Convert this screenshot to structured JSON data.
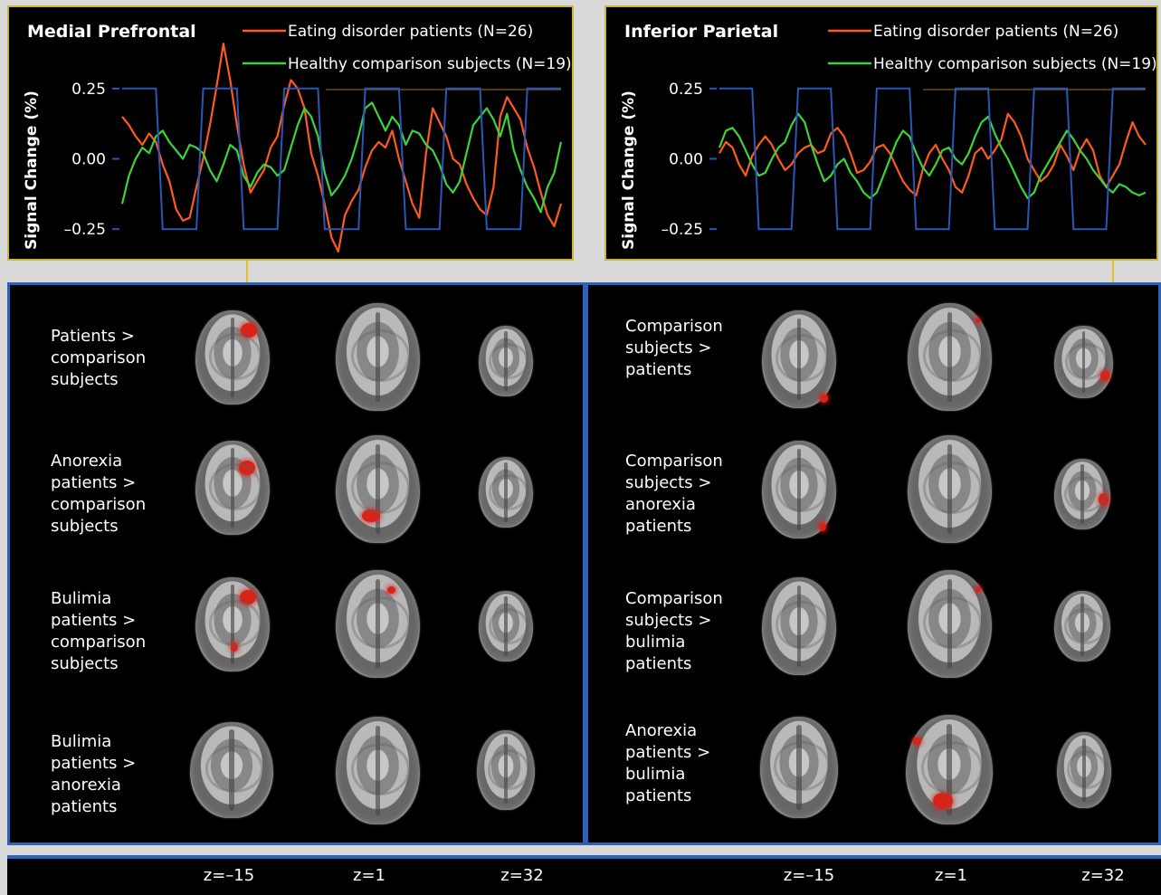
{
  "chart_data": [
    {
      "type": "line",
      "title": "Medial Prefrontal",
      "ylabel": "Signal Change (%)",
      "ylim": [
        -0.33,
        0.33
      ],
      "yticks": [
        "0.25",
        "0.00",
        "–0.25"
      ],
      "series": [
        {
          "name": "Eating disorder patients (N=26)",
          "color": "#ff5a1f",
          "values": [
            0.15,
            0.12,
            0.08,
            0.05,
            0.09,
            0.06,
            -0.02,
            -0.08,
            -0.18,
            -0.22,
            -0.21,
            -0.1,
            0.0,
            0.12,
            0.26,
            0.41,
            0.28,
            0.12,
            -0.02,
            -0.12,
            -0.08,
            -0.04,
            0.04,
            0.08,
            0.19,
            0.28,
            0.25,
            0.18,
            0.02,
            -0.06,
            -0.16,
            -0.28,
            -0.33,
            -0.2,
            -0.15,
            -0.11,
            -0.03,
            0.03,
            0.06,
            0.04,
            0.1,
            0.0,
            -0.08,
            -0.16,
            -0.21,
            0.02,
            0.18,
            0.13,
            0.08,
            0.0,
            -0.02,
            -0.09,
            -0.14,
            -0.18,
            -0.2,
            -0.1,
            0.15,
            0.22,
            0.18,
            0.14,
            0.04,
            -0.03,
            -0.12,
            -0.2,
            -0.24,
            -0.16
          ]
        },
        {
          "name": "Healthy comparison subjects (N=19)",
          "color": "#3cd33c",
          "values": [
            -0.16,
            -0.06,
            0.0,
            0.04,
            0.02,
            0.08,
            0.1,
            0.06,
            0.03,
            0.0,
            0.05,
            0.04,
            0.02,
            -0.04,
            -0.08,
            -0.02,
            0.05,
            0.03,
            -0.06,
            -0.1,
            -0.05,
            -0.02,
            -0.03,
            -0.06,
            -0.04,
            0.04,
            0.12,
            0.18,
            0.15,
            0.08,
            -0.05,
            -0.13,
            -0.1,
            -0.06,
            0.0,
            0.08,
            0.18,
            0.2,
            0.15,
            0.1,
            0.15,
            0.12,
            0.05,
            0.1,
            0.09,
            0.05,
            0.03,
            -0.02,
            -0.09,
            -0.12,
            -0.08,
            0.02,
            0.12,
            0.15,
            0.18,
            0.14,
            0.08,
            0.16,
            0.03,
            -0.04,
            -0.1,
            -0.14,
            -0.19,
            -0.1,
            -0.05,
            0.06
          ]
        },
        {
          "name": "",
          "color": "#2a57b7",
          "values": [
            0.25,
            0.25,
            0.25,
            0.25,
            0.25,
            0.25,
            -0.25,
            -0.25,
            -0.25,
            -0.25,
            -0.25,
            -0.25,
            0.25,
            0.25,
            0.25,
            0.25,
            0.25,
            0.25,
            -0.25,
            -0.25,
            -0.25,
            -0.25,
            -0.25,
            -0.25,
            0.25,
            0.25,
            0.25,
            0.25,
            0.25,
            0.25,
            -0.25,
            -0.25,
            -0.25,
            -0.25,
            -0.25,
            -0.25,
            0.25,
            0.25,
            0.25,
            0.25,
            0.25,
            0.25,
            -0.25,
            -0.25,
            -0.25,
            -0.25,
            -0.25,
            -0.25,
            0.25,
            0.25,
            0.25,
            0.25,
            0.25,
            0.25,
            -0.25,
            -0.25,
            -0.25,
            -0.25,
            -0.25,
            -0.25,
            0.25,
            0.25,
            0.25,
            0.25,
            0.25,
            0.25
          ]
        }
      ]
    },
    {
      "type": "line",
      "title": "Inferior Parietal",
      "ylabel": "Signal Change (%)",
      "ylim": [
        -0.33,
        0.33
      ],
      "yticks": [
        "0.25",
        "0.00",
        "–0.25"
      ],
      "series": [
        {
          "name": "Eating disorder patients (N=26)",
          "color": "#ff5a1f",
          "values": [
            0.02,
            0.06,
            0.04,
            -0.02,
            -0.06,
            0.01,
            0.05,
            0.08,
            0.05,
            0.0,
            -0.04,
            -0.02,
            0.02,
            0.04,
            0.05,
            0.02,
            0.03,
            0.09,
            0.11,
            0.08,
            0.02,
            -0.05,
            -0.04,
            -0.01,
            0.04,
            0.05,
            0.02,
            -0.03,
            -0.08,
            -0.11,
            -0.13,
            -0.04,
            0.02,
            0.05,
            0.0,
            -0.04,
            -0.1,
            -0.12,
            -0.06,
            0.02,
            0.04,
            0.0,
            0.03,
            0.07,
            0.16,
            0.13,
            0.08,
            0.0,
            -0.04,
            -0.08,
            -0.06,
            -0.02,
            0.05,
            0.01,
            -0.04,
            0.03,
            0.07,
            0.03,
            -0.06,
            -0.1,
            -0.06,
            -0.02,
            0.06,
            0.13,
            0.08,
            0.05
          ]
        },
        {
          "name": "Healthy comparison subjects (N=19)",
          "color": "#3cd33c",
          "values": [
            0.04,
            0.1,
            0.11,
            0.08,
            0.03,
            -0.02,
            -0.06,
            -0.05,
            0.0,
            0.04,
            0.06,
            0.12,
            0.16,
            0.13,
            0.05,
            -0.02,
            -0.08,
            -0.06,
            -0.02,
            0.0,
            -0.05,
            -0.08,
            -0.12,
            -0.14,
            -0.12,
            -0.06,
            0.0,
            0.06,
            0.1,
            0.08,
            0.02,
            -0.03,
            -0.06,
            -0.02,
            0.03,
            0.04,
            0.0,
            -0.02,
            0.02,
            0.08,
            0.13,
            0.15,
            0.09,
            0.04,
            0.0,
            -0.05,
            -0.1,
            -0.14,
            -0.12,
            -0.06,
            -0.02,
            0.02,
            0.06,
            0.1,
            0.07,
            0.03,
            0.0,
            -0.04,
            -0.07,
            -0.1,
            -0.12,
            -0.09,
            -0.1,
            -0.12,
            -0.13,
            -0.12
          ]
        },
        {
          "name": "",
          "color": "#2a57b7",
          "values": [
            0.25,
            0.25,
            0.25,
            0.25,
            0.25,
            0.25,
            -0.25,
            -0.25,
            -0.25,
            -0.25,
            -0.25,
            -0.25,
            0.25,
            0.25,
            0.25,
            0.25,
            0.25,
            0.25,
            -0.25,
            -0.25,
            -0.25,
            -0.25,
            -0.25,
            -0.25,
            0.25,
            0.25,
            0.25,
            0.25,
            0.25,
            0.25,
            -0.25,
            -0.25,
            -0.25,
            -0.25,
            -0.25,
            -0.25,
            0.25,
            0.25,
            0.25,
            0.25,
            0.25,
            0.25,
            -0.25,
            -0.25,
            -0.25,
            -0.25,
            -0.25,
            -0.25,
            0.25,
            0.25,
            0.25,
            0.25,
            0.25,
            0.25,
            -0.25,
            -0.25,
            -0.25,
            -0.25,
            -0.25,
            -0.25,
            0.25,
            0.25,
            0.25,
            0.25,
            0.25,
            0.25
          ]
        }
      ]
    }
  ],
  "left_labels": [
    "Patients >\ncomparison\nsubjects",
    "Anorexia\npatients >\ncomparison\nsubjects",
    "Bulimia\npatients >\ncomparison\nsubjects",
    "Bulimia\npatients >\nanorexia\npatients"
  ],
  "right_labels": [
    "Comparison\nsubjects >\npatients",
    "Comparison\nsubjects >\nanorexia\npatients",
    "Comparison\nsubjects >\nbulimia\npatients",
    "Anorexia\npatients >\nbulimia\npatients"
  ],
  "x_labels": [
    "z=–15",
    "z=1",
    "z=32",
    "z=–15",
    "z=1",
    "z=32"
  ]
}
